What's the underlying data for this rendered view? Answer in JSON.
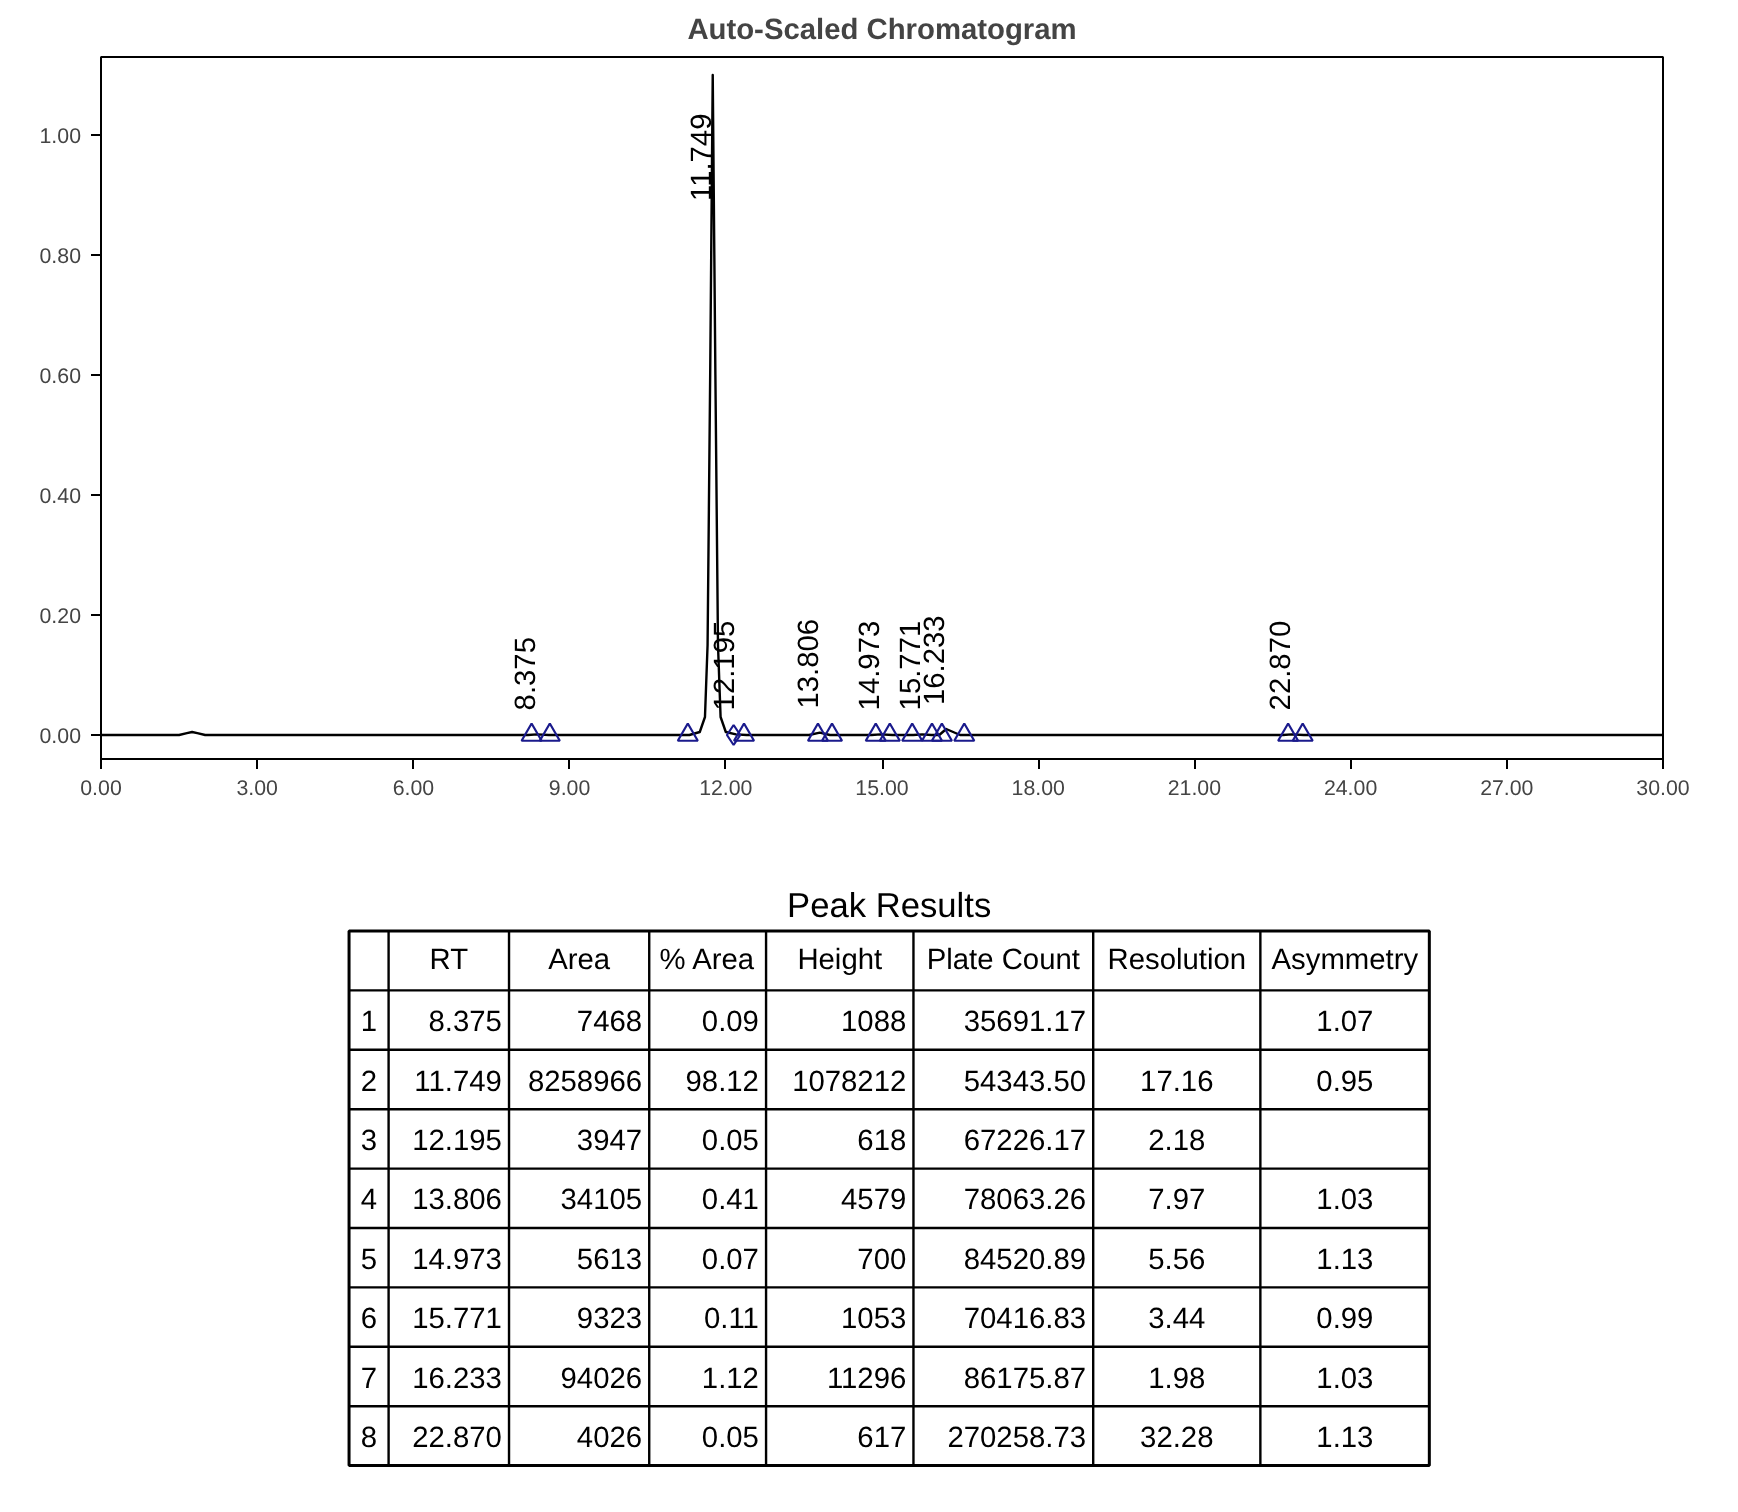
{
  "chart_data": [
    {
      "type": "line",
      "title": "Auto-Scaled Chromatogram",
      "series": [
        {
          "type": "line",
          "color": "#000000",
          "x": [
            0,
            1.5,
            1.65,
            1.75,
            1.85,
            2.0,
            8.2,
            8.375,
            8.6,
            11.3,
            11.5,
            11.6,
            11.65,
            11.7,
            11.749,
            11.8,
            11.85,
            11.9,
            12.0,
            12.195,
            12.4,
            13.6,
            13.806,
            14.0,
            14.8,
            14.973,
            15.2,
            15.6,
            15.771,
            15.95,
            16.1,
            16.233,
            16.5,
            22.7,
            22.87,
            23.1,
            30
          ],
          "values": [
            0,
            0,
            0.003,
            0.005,
            0.003,
            0,
            0,
            0.001,
            0,
            0,
            0.005,
            0.03,
            0.15,
            0.6,
            1.1,
            0.6,
            0.15,
            0.03,
            0.005,
            0.001,
            0,
            0,
            0.004,
            0,
            0,
            0.001,
            0,
            0,
            0.001,
            0,
            0,
            0.01,
            0,
            0,
            0.001,
            0,
            0
          ]
        },
        {
          "type": "scatter",
          "marker": "triangle",
          "color": "#1a1a8c",
          "x": [
            8.27,
            8.62,
            11.27,
            12.35,
            13.77,
            14.04,
            14.88,
            15.15,
            15.58,
            15.96,
            16.15,
            16.58,
            22.8,
            23.08
          ],
          "values": [
            0,
            0,
            0,
            0,
            0,
            0,
            0,
            0,
            0,
            0,
            0,
            0,
            0,
            0
          ]
        },
        {
          "type": "scatter",
          "marker": "diamond",
          "color": "#1a1a8c",
          "x": [
            12.15
          ],
          "values": [
            0
          ]
        }
      ],
      "xlim": [
        0,
        30
      ],
      "ylim": [
        -0.04,
        1.13
      ],
      "xticks": [
        {
          "value": 0,
          "label": "0.00"
        },
        {
          "value": 3,
          "label": "3.00"
        },
        {
          "value": 6,
          "label": "6.00"
        },
        {
          "value": 9,
          "label": "9.00"
        },
        {
          "value": 12,
          "label": "12.00"
        },
        {
          "value": 15,
          "label": "15.00"
        },
        {
          "value": 18,
          "label": "18.00"
        },
        {
          "value": 21,
          "label": "21.00"
        },
        {
          "value": 24,
          "label": "24.00"
        },
        {
          "value": 27,
          "label": "27.00"
        },
        {
          "value": 30,
          "label": "30.00"
        }
      ],
      "yticks": [
        {
          "value": 0,
          "label": "0.00"
        },
        {
          "value": 0.2,
          "label": "0.20"
        },
        {
          "value": 0.4,
          "label": "0.40"
        },
        {
          "value": 0.6,
          "label": "0.60"
        },
        {
          "value": 0.8,
          "label": "0.80"
        },
        {
          "value": 1.0,
          "label": "1.00"
        }
      ],
      "annotations": [
        {
          "text": "8.375",
          "x": 8.375,
          "y": 0.001
        },
        {
          "text": "11.749",
          "x": 11.749,
          "y": 0.85
        },
        {
          "text": "12.195",
          "x": 12.195,
          "y": 0.001
        },
        {
          "text": "13.806",
          "x": 13.806,
          "y": 0.004
        },
        {
          "text": "14.973",
          "x": 14.973,
          "y": 0.001
        },
        {
          "text": "15.771",
          "x": 15.771,
          "y": 0.001
        },
        {
          "text": "16.233",
          "x": 16.233,
          "y": 0.01
        },
        {
          "text": "22.870",
          "x": 22.87,
          "y": 0.001
        }
      ]
    },
    {
      "type": "heatmap",
      "title": "Peak Results",
      "categories": [
        "RT",
        "Area",
        "% Area",
        "Height",
        "Plate Count",
        "Resolution",
        "Asymmetry"
      ],
      "y_categories": [
        "1",
        "2",
        "3",
        "4",
        "5",
        "6",
        "7",
        "8"
      ],
      "cells": [
        [
          8.375,
          7468,
          0.09,
          1088,
          35691.17,
          null,
          1.07
        ],
        [
          11.749,
          8258966,
          98.12,
          1078212,
          54343.5,
          17.16,
          0.95
        ],
        [
          12.195,
          3947,
          0.05,
          618,
          67226.17,
          2.18,
          null
        ],
        [
          13.806,
          34105,
          0.41,
          4579,
          78063.26,
          7.97,
          1.03
        ],
        [
          14.973,
          5613,
          0.07,
          700,
          84520.89,
          5.56,
          1.13
        ],
        [
          15.771,
          9323,
          0.11,
          1053,
          70416.83,
          3.44,
          0.99
        ],
        [
          16.233,
          94026,
          1.12,
          11296,
          86175.87,
          1.98,
          1.03
        ],
        [
          22.87,
          4026,
          0.05,
          617,
          270258.73,
          32.28,
          1.13
        ]
      ],
      "cell_labels": [
        [
          "8.375",
          "7468",
          "0.09",
          "1088",
          "35691.17",
          null,
          "1.07"
        ],
        [
          "11.749",
          "8258966",
          "98.12",
          "1078212",
          "54343.50",
          "17.16",
          "0.95"
        ],
        [
          "12.195",
          "3947",
          "0.05",
          "618",
          "67226.17",
          "2.18",
          null
        ],
        [
          "13.806",
          "34105",
          "0.41",
          "4579",
          "78063.26",
          "7.97",
          "1.03"
        ],
        [
          "14.973",
          "5613",
          "0.07",
          "700",
          "84520.89",
          "5.56",
          "1.13"
        ],
        [
          "15.771",
          "9323",
          "0.11",
          "1053",
          "70416.83",
          "3.44",
          "0.99"
        ],
        [
          "16.233",
          "94026",
          "1.12",
          "11296",
          "86175.87",
          "1.98",
          "1.03"
        ],
        [
          "22.870",
          "4026",
          "0.05",
          "617",
          "270258.73",
          "32.28",
          "1.13"
        ]
      ]
    }
  ]
}
